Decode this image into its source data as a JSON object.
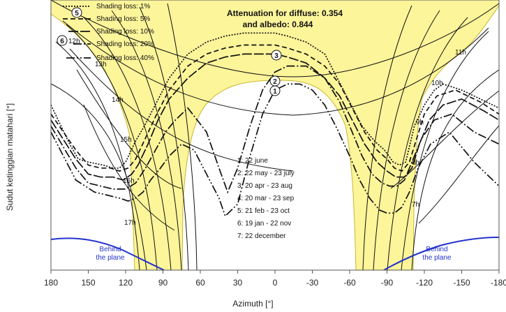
{
  "chart_data": {
    "type": "line",
    "title": "Attenuation for diffuse: 0.354",
    "subtitle": "and albedo: 0.844",
    "xlabel": "Azimuth [°]",
    "ylabel": "Sudut ketinggian matahari [°]",
    "x_ticks": [
      "180",
      "150",
      "120",
      "90",
      "60",
      "30",
      "0",
      "-30",
      "-60",
      "-90",
      "-120",
      "-150",
      "-180"
    ],
    "xlim": [
      180,
      -180
    ],
    "grid": false,
    "legend_position": "top-left",
    "legend": [
      {
        "label": "Shading loss: 1%",
        "dash": "2 2"
      },
      {
        "label": "Shading loss: 5%",
        "dash": "7 4"
      },
      {
        "label": "Shading loss: 10%",
        "dash": "14 3"
      },
      {
        "label": "Shading loss: 20%",
        "dash": "12 3 2 3"
      },
      {
        "label": "Shading loss: 40%",
        "dash": "12 3 2 3 2 3"
      }
    ],
    "date_legend": [
      "1: 22 june",
      "2: 22 may - 23 july",
      "3: 20 apr - 23 aug",
      "4: 20 mar - 23 sep",
      "5: 21 feb - 23 oct",
      "6: 19 jan - 22 nov",
      "7: 22 december"
    ],
    "hour_labels_left": [
      "12h",
      "13h",
      "14h",
      "15h",
      "16h",
      "17h"
    ],
    "hour_labels_right": [
      "11h",
      "10h",
      "9h",
      "8h",
      "7h"
    ],
    "path_markers": [
      "5",
      "6",
      "3",
      "2",
      "1"
    ],
    "region_labels": [
      "Behind\nthe plane",
      "Behind\nthe plane"
    ],
    "colors": {
      "yellow": "#fdf59a",
      "yellow_edge": "#c8b830",
      "blue": "#2233cc",
      "black": "#111111"
    },
    "series": [
      {
        "name": "Shading loss: 1%",
        "x": [
          180,
          165,
          158,
          150,
          138,
          130,
          125,
          120,
          112,
          105,
          95,
          85,
          70,
          55,
          40,
          25,
          10,
          0,
          -10,
          -25,
          -40,
          -50,
          -60,
          -70,
          -80,
          -88,
          -95,
          -100,
          -105,
          -112,
          -120,
          -128,
          -135,
          -150,
          -170,
          -180
        ],
        "y": [
          55,
          42,
          37,
          36,
          35,
          34,
          34,
          36,
          43,
          48,
          56,
          64,
          72,
          76,
          78,
          79,
          79,
          79,
          78,
          76,
          72,
          64,
          56,
          48,
          43,
          40,
          36,
          35,
          36,
          48,
          55,
          60,
          62,
          60,
          56,
          54
        ]
      },
      {
        "name": "Shading loss: 5%",
        "x": [
          180,
          160,
          150,
          140,
          132,
          125,
          118,
          112,
          104,
          95,
          85,
          70,
          55,
          40,
          25,
          10,
          0,
          -10,
          -25,
          -40,
          -52,
          -62,
          -72,
          -82,
          -90,
          -96,
          -102,
          -108,
          -114,
          -120,
          -130,
          -145,
          -165,
          -180
        ],
        "y": [
          52,
          40,
          35,
          34,
          34,
          33,
          34,
          37,
          44,
          52,
          60,
          68,
          72,
          74,
          75,
          75,
          75,
          74,
          72,
          68,
          62,
          54,
          46,
          40,
          37,
          34,
          33,
          36,
          44,
          52,
          58,
          60,
          56,
          52
        ]
      },
      {
        "name": "Shading loss: 10%",
        "x": [
          180,
          160,
          150,
          140,
          130,
          122,
          115,
          110,
          102,
          94,
          85,
          70,
          55,
          40,
          25,
          10,
          0,
          -10,
          -25,
          -40,
          -52,
          -62,
          -72,
          -82,
          -90,
          -97,
          -104,
          -110,
          -116,
          -124,
          -135,
          -150,
          -168,
          -180
        ],
        "y": [
          50,
          37,
          32,
          31,
          31,
          30,
          32,
          35,
          42,
          50,
          57,
          64,
          69,
          71,
          72,
          72,
          72,
          71,
          69,
          64,
          58,
          50,
          42,
          36,
          33,
          31,
          31,
          34,
          42,
          50,
          55,
          57,
          53,
          50
        ]
      },
      {
        "name": "Shading loss: 20%",
        "x": [
          180,
          160,
          150,
          140,
          130,
          120,
          112,
          104,
          96,
          88,
          80,
          70,
          55,
          45,
          38,
          30,
          20,
          10,
          0,
          -10,
          -25,
          -40,
          -52,
          -62,
          -70,
          -78,
          -86,
          -92,
          -98,
          -104,
          -110,
          -118,
          -128,
          -142,
          -160,
          -180
        ],
        "y": [
          48,
          34,
          29,
          28,
          27,
          27,
          29,
          34,
          40,
          46,
          50,
          54,
          46,
          34,
          26,
          34,
          48,
          60,
          66,
          68,
          68,
          64,
          56,
          46,
          38,
          32,
          29,
          28,
          28,
          30,
          36,
          44,
          50,
          52,
          46,
          42
        ]
      },
      {
        "name": "Shading loss: 40%",
        "x": [
          180,
          160,
          145,
          135,
          125,
          118,
          112,
          106,
          100,
          92,
          85,
          75,
          65,
          55,
          45,
          40,
          30,
          20,
          10,
          0,
          -10,
          -20,
          -30,
          -40,
          -50,
          -60,
          -68,
          -76,
          -84,
          -90,
          -96,
          -102,
          -108,
          -115,
          -125,
          -140,
          -160,
          -180
        ],
        "y": [
          46,
          30,
          26,
          25,
          24,
          23,
          24,
          26,
          30,
          34,
          38,
          42,
          40,
          32,
          24,
          18,
          22,
          38,
          52,
          60,
          62,
          62,
          60,
          55,
          47,
          38,
          30,
          24,
          20,
          19,
          19,
          21,
          26,
          34,
          42,
          46,
          36,
          28
        ]
      }
    ]
  },
  "caption": {
    "x_axis": "Azimuth [°]",
    "y_axis": "Sudut ketinggian matahari [°]"
  }
}
